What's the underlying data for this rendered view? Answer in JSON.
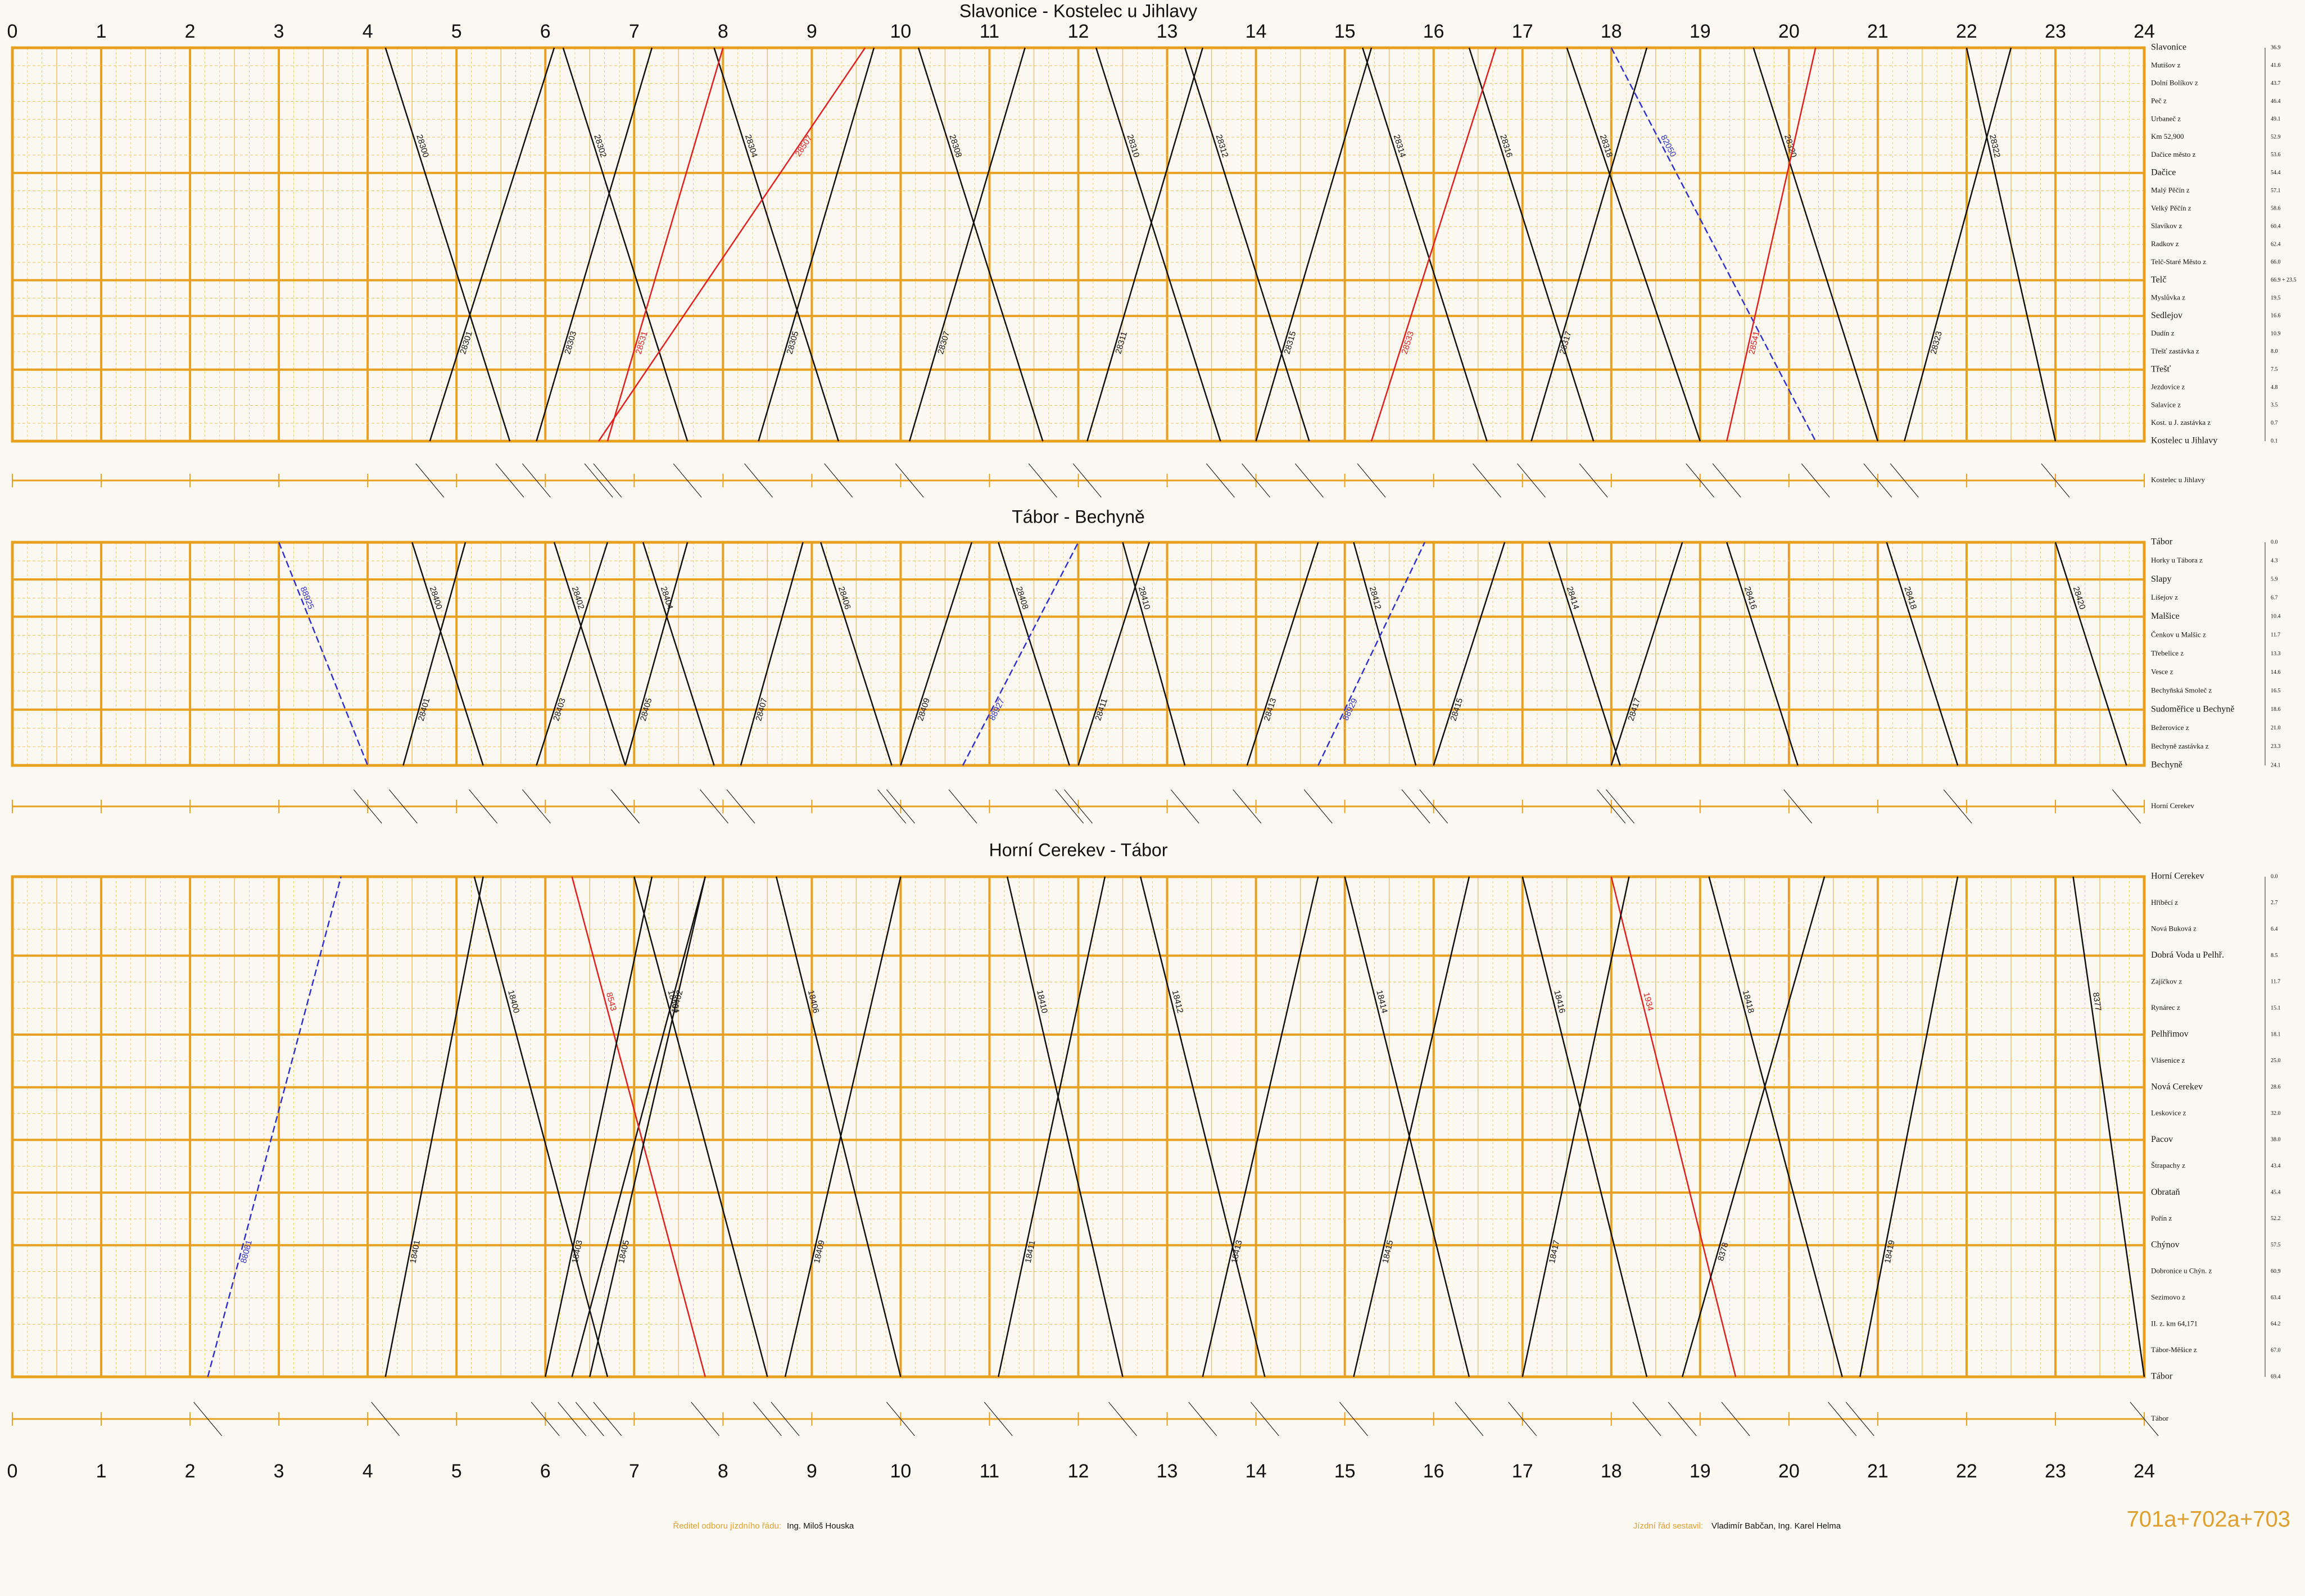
{
  "hours": [
    0,
    1,
    2,
    3,
    4,
    5,
    6,
    7,
    8,
    9,
    10,
    11,
    12,
    13,
    14,
    15,
    16,
    17,
    18,
    19,
    20,
    21,
    22,
    23,
    24
  ],
  "panels": [
    {
      "title": "Slavonice - Kostelec u Jihlavy",
      "strip_label": "Kostelec u Jihlavy",
      "stations": [
        {
          "name": "Slavonice",
          "km": "36.9",
          "major": true
        },
        {
          "name": "Mutišov z",
          "km": "41.6"
        },
        {
          "name": "Dolní Bolíkov z",
          "km": "43.7"
        },
        {
          "name": "Peč z",
          "km": "46.4"
        },
        {
          "name": "Urbaneč z",
          "km": "49.1"
        },
        {
          "name": "Km 52,900",
          "km": "52.9"
        },
        {
          "name": "Dačice město z",
          "km": "53.6"
        },
        {
          "name": "Dačice",
          "km": "54.4",
          "major": true
        },
        {
          "name": "Malý Pěčín z",
          "km": "57.1"
        },
        {
          "name": "Velký Pěčín z",
          "km": "58.6"
        },
        {
          "name": "Slavíkov z",
          "km": "60.4"
        },
        {
          "name": "Radkov z",
          "km": "62.4"
        },
        {
          "name": "Telč-Staré Město z",
          "km": "66.0"
        },
        {
          "name": "Telč",
          "km": "66.9 + 23.5",
          "major": true
        },
        {
          "name": "Myslůvka z",
          "km": "19.5"
        },
        {
          "name": "Sedlejov",
          "km": "16.6",
          "major": true
        },
        {
          "name": "Dudín z",
          "km": "10.9"
        },
        {
          "name": "Třešť zastávka z",
          "km": "8.0"
        },
        {
          "name": "Třešť",
          "km": "7.5",
          "major": true
        },
        {
          "name": "Jezdovice z",
          "km": "4.8"
        },
        {
          "name": "Salavice z",
          "km": "3.5"
        },
        {
          "name": "Kost. u J. zastávka z",
          "km": "0.7"
        },
        {
          "name": "Kostelec u Jihlavy",
          "km": "0.1",
          "major": true
        }
      ],
      "trains": [
        {
          "number": "28300",
          "color": "#111",
          "dir": "down",
          "start": 4.2,
          "end": 5.6
        },
        {
          "number": "28302",
          "color": "#111",
          "dir": "down",
          "start": 6.2,
          "end": 7.6
        },
        {
          "number": "28304",
          "color": "#111",
          "dir": "down",
          "start": 7.9,
          "end": 9.3
        },
        {
          "number": "28507",
          "color": "#e02020",
          "dir": "down",
          "start": 9.6,
          "end": 6.6
        },
        {
          "number": "28308",
          "color": "#111",
          "dir": "down",
          "start": 10.2,
          "end": 11.6
        },
        {
          "number": "28310",
          "color": "#111",
          "dir": "down",
          "start": 12.2,
          "end": 13.6
        },
        {
          "number": "28312",
          "color": "#111",
          "dir": "down",
          "start": 13.2,
          "end": 14.6
        },
        {
          "number": "28314",
          "color": "#111",
          "dir": "down",
          "start": 15.2,
          "end": 16.6
        },
        {
          "number": "28316",
          "color": "#111",
          "dir": "down",
          "start": 16.4,
          "end": 17.8
        },
        {
          "number": "28318",
          "color": "#111",
          "dir": "down",
          "start": 17.5,
          "end": 19.0
        },
        {
          "number": "82050",
          "color": "#3030d0",
          "dir": "down",
          "start": 18.0,
          "end": 20.3
        },
        {
          "number": "28320",
          "color": "#111",
          "dir": "down",
          "start": 19.6,
          "end": 21.0
        },
        {
          "number": "28322",
          "color": "#111",
          "dir": "down",
          "start": 22.0,
          "end": 23.0
        },
        {
          "number": "28301",
          "color": "#111",
          "dir": "up",
          "start": 4.7,
          "end": 6.1
        },
        {
          "number": "28303",
          "color": "#111",
          "dir": "up",
          "start": 5.9,
          "end": 7.2
        },
        {
          "number": "28531",
          "color": "#e02020",
          "dir": "up",
          "start": 6.7,
          "end": 8.0
        },
        {
          "number": "28305",
          "color": "#111",
          "dir": "up",
          "start": 8.4,
          "end": 9.7
        },
        {
          "number": "28307",
          "color": "#111",
          "dir": "up",
          "start": 10.1,
          "end": 11.4
        },
        {
          "number": "28311",
          "color": "#111",
          "dir": "up",
          "start": 12.1,
          "end": 13.4
        },
        {
          "number": "28315",
          "color": "#111",
          "dir": "up",
          "start": 14.0,
          "end": 15.3
        },
        {
          "number": "28533",
          "color": "#e02020",
          "dir": "up",
          "start": 15.3,
          "end": 16.7
        },
        {
          "number": "28317",
          "color": "#111",
          "dir": "up",
          "start": 17.1,
          "end": 18.4
        },
        {
          "number": "28541",
          "color": "#e02020",
          "dir": "up",
          "start": 19.3,
          "end": 20.3
        },
        {
          "number": "28323",
          "color": "#111",
          "dir": "up",
          "start": 21.3,
          "end": 22.5
        }
      ]
    },
    {
      "title": "Tábor - Bechyně",
      "strip_label": "Horní Cerekev",
      "stations": [
        {
          "name": "Tábor",
          "km": "0.0",
          "major": true
        },
        {
          "name": "Horky u Tábora z",
          "km": "4.3"
        },
        {
          "name": "Slapy",
          "km": "5.9",
          "major": true
        },
        {
          "name": "Lišejov z",
          "km": "6.7"
        },
        {
          "name": "Malšice",
          "km": "10.4",
          "major": true
        },
        {
          "name": "Čenkov u Malšic z",
          "km": "11.7"
        },
        {
          "name": "Třebelice z",
          "km": "13.3"
        },
        {
          "name": "Vesce z",
          "km": "14.6"
        },
        {
          "name": "Bechyňská Smoleč z",
          "km": "16.5"
        },
        {
          "name": "Sudoměřice u Bechyně",
          "km": "18.6",
          "major": true
        },
        {
          "name": "Bežerovice z",
          "km": "21.0"
        },
        {
          "name": "Bechyně zastávka z",
          "km": "23.3"
        },
        {
          "name": "Bechyně",
          "km": "24.1",
          "major": true
        }
      ],
      "trains": [
        {
          "number": "28400",
          "color": "#111",
          "dir": "down",
          "start": 4.5,
          "end": 5.3
        },
        {
          "number": "28402",
          "color": "#111",
          "dir": "down",
          "start": 6.1,
          "end": 6.9
        },
        {
          "number": "28404",
          "color": "#111",
          "dir": "down",
          "start": 7.1,
          "end": 7.9
        },
        {
          "number": "28406",
          "color": "#111",
          "dir": "down",
          "start": 9.1,
          "end": 9.9
        },
        {
          "number": "28408",
          "color": "#111",
          "dir": "down",
          "start": 11.1,
          "end": 11.9
        },
        {
          "number": "28410",
          "color": "#111",
          "dir": "down",
          "start": 12.5,
          "end": 13.2
        },
        {
          "number": "28412",
          "color": "#111",
          "dir": "down",
          "start": 15.1,
          "end": 15.8
        },
        {
          "number": "28414",
          "color": "#111",
          "dir": "down",
          "start": 17.3,
          "end": 18.1
        },
        {
          "number": "28416",
          "color": "#111",
          "dir": "down",
          "start": 19.3,
          "end": 20.1
        },
        {
          "number": "28418",
          "color": "#111",
          "dir": "down",
          "start": 21.1,
          "end": 21.9
        },
        {
          "number": "28420",
          "color": "#111",
          "dir": "down",
          "start": 23.0,
          "end": 23.8
        },
        {
          "number": "88925",
          "color": "#3030d0",
          "dir": "down",
          "start": 3.0,
          "end": 4.0
        },
        {
          "number": "28401",
          "color": "#111",
          "dir": "up",
          "start": 4.4,
          "end": 5.1
        },
        {
          "number": "28403",
          "color": "#111",
          "dir": "up",
          "start": 5.9,
          "end": 6.7
        },
        {
          "number": "28405",
          "color": "#111",
          "dir": "up",
          "start": 6.9,
          "end": 7.6
        },
        {
          "number": "28407",
          "color": "#111",
          "dir": "up",
          "start": 8.2,
          "end": 8.9
        },
        {
          "number": "28409",
          "color": "#111",
          "dir": "up",
          "start": 10.0,
          "end": 10.8
        },
        {
          "number": "88927",
          "color": "#3030d0",
          "dir": "up",
          "start": 10.7,
          "end": 12.0
        },
        {
          "number": "28411",
          "color": "#111",
          "dir": "up",
          "start": 12.0,
          "end": 12.8
        },
        {
          "number": "28413",
          "color": "#111",
          "dir": "up",
          "start": 13.9,
          "end": 14.7
        },
        {
          "number": "88929",
          "color": "#3030d0",
          "dir": "up",
          "start": 14.7,
          "end": 15.9
        },
        {
          "number": "28415",
          "color": "#111",
          "dir": "up",
          "start": 16.0,
          "end": 16.8
        },
        {
          "number": "28417",
          "color": "#111",
          "dir": "up",
          "start": 18.0,
          "end": 18.8
        }
      ]
    },
    {
      "title": "Horní Cerekev - Tábor",
      "strip_label": "Tábor",
      "stations": [
        {
          "name": "Horní Cerekev",
          "km": "0.0",
          "major": true
        },
        {
          "name": "Hříběcí z",
          "km": "2.7"
        },
        {
          "name": "Nová Buková z",
          "km": "6.4"
        },
        {
          "name": "Dobrá Voda u Pelhř.",
          "km": "8.5",
          "major": true
        },
        {
          "name": "Zajíčkov z",
          "km": "11.7"
        },
        {
          "name": "Rynárec z",
          "km": "15.1"
        },
        {
          "name": "Pelhřimov",
          "km": "18.1",
          "major": true
        },
        {
          "name": "Vlásenice z",
          "km": "25.0"
        },
        {
          "name": "Nová Cerekev",
          "km": "28.6",
          "major": true
        },
        {
          "name": "Leskovice z",
          "km": "32.0"
        },
        {
          "name": "Pacov",
          "km": "38.0",
          "major": true
        },
        {
          "name": "Štrapachy z",
          "km": "43.4"
        },
        {
          "name": "Obrataň",
          "km": "45.4",
          "major": true
        },
        {
          "name": "Pořín z",
          "km": "52.2"
        },
        {
          "name": "Chýnov",
          "km": "57.5",
          "major": true
        },
        {
          "name": "Dobronice u Chýn. z",
          "km": "60.9"
        },
        {
          "name": "Sezimovo z",
          "km": "63.4"
        },
        {
          "name": "II. z. km 64,171",
          "km": "64.2"
        },
        {
          "name": "Tábor-Měšice z",
          "km": "67.0"
        },
        {
          "name": "Tábor",
          "km": "69.4",
          "major": true
        }
      ],
      "trains": [
        {
          "number": "18400",
          "color": "#111",
          "dir": "down",
          "start": 5.2,
          "end": 6.7
        },
        {
          "number": "18402",
          "color": "#111",
          "dir": "down",
          "start": 7.8,
          "end": 6.3
        },
        {
          "number": "18404",
          "color": "#111",
          "dir": "down",
          "start": 7.0,
          "end": 8.5
        },
        {
          "number": "18406",
          "color": "#111",
          "dir": "down",
          "start": 8.6,
          "end": 10.0
        },
        {
          "number": "18410",
          "color": "#111",
          "dir": "down",
          "start": 11.2,
          "end": 12.5
        },
        {
          "number": "18412",
          "color": "#111",
          "dir": "down",
          "start": 12.7,
          "end": 14.1
        },
        {
          "number": "18414",
          "color": "#111",
          "dir": "down",
          "start": 15.0,
          "end": 16.4
        },
        {
          "number": "18416",
          "color": "#111",
          "dir": "down",
          "start": 17.0,
          "end": 18.4
        },
        {
          "number": "18418",
          "color": "#111",
          "dir": "down",
          "start": 19.1,
          "end": 20.6
        },
        {
          "number": "1934",
          "color": "#e02020",
          "dir": "down",
          "start": 18.0,
          "end": 19.4
        },
        {
          "number": "8543",
          "color": "#e02020",
          "dir": "down",
          "start": 6.3,
          "end": 7.8
        },
        {
          "number": "8377",
          "color": "#111",
          "dir": "down",
          "start": 23.2,
          "end": 24.0
        },
        {
          "number": "18401",
          "color": "#111",
          "dir": "up",
          "start": 4.2,
          "end": 5.3
        },
        {
          "number": "18403",
          "color": "#111",
          "dir": "up",
          "start": 6.0,
          "end": 7.2
        },
        {
          "number": "18405",
          "color": "#111",
          "dir": "up",
          "start": 6.5,
          "end": 7.8
        },
        {
          "number": "18409",
          "color": "#111",
          "dir": "up",
          "start": 8.7,
          "end": 10.0
        },
        {
          "number": "18411",
          "color": "#111",
          "dir": "up",
          "start": 11.1,
          "end": 12.3
        },
        {
          "number": "18413",
          "color": "#111",
          "dir": "up",
          "start": 13.4,
          "end": 14.7
        },
        {
          "number": "18415",
          "color": "#111",
          "dir": "up",
          "start": 15.1,
          "end": 16.4
        },
        {
          "number": "18417",
          "color": "#111",
          "dir": "up",
          "start": 17.0,
          "end": 18.2
        },
        {
          "number": "18419",
          "color": "#111",
          "dir": "up",
          "start": 20.8,
          "end": 21.9
        },
        {
          "number": "88081",
          "color": "#3030d0",
          "dir": "up",
          "start": 2.2,
          "end": 3.7
        },
        {
          "number": "8378",
          "color": "#111",
          "dir": "up",
          "start": 18.8,
          "end": 20.4
        }
      ]
    }
  ],
  "footer": {
    "director_label": "Ředitel odboru jízdního řádu:",
    "director": "Ing. Miloš Houska",
    "author_label": "Jízdní řád sestavil:",
    "authors": "Vladimír Babčan, Ing. Karel Helma",
    "sheet": "701a+702a+703"
  }
}
